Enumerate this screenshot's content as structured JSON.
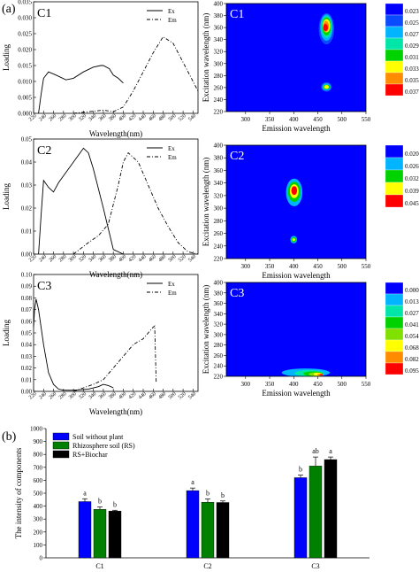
{
  "panel_labels": {
    "a": "(a)",
    "b": "(b)"
  },
  "chart_data": [
    {
      "type": "line",
      "panel": "C1",
      "xlabel": "Wavelength(nm)",
      "ylabel": "Loading",
      "xlim": [
        220,
        550
      ],
      "ylim": [
        0,
        0.035
      ],
      "yticks": [
        "0.000",
        "0.005",
        "0.010",
        "0.015",
        "0.020",
        "0.025",
        "0.030",
        "0.035"
      ],
      "xticks": [
        220,
        240,
        260,
        280,
        300,
        320,
        340,
        360,
        380,
        400,
        420,
        440,
        460,
        480,
        500,
        520,
        540
      ],
      "legend": [
        "Ex",
        "Em"
      ],
      "series": [
        {
          "name": "Ex",
          "style": "solid",
          "x": [
            230,
            235,
            240,
            250,
            265,
            285,
            300,
            320,
            340,
            355,
            360,
            372,
            380,
            390,
            400
          ],
          "y": [
            0.0,
            0.006,
            0.011,
            0.013,
            0.012,
            0.0105,
            0.011,
            0.013,
            0.0145,
            0.015,
            0.015,
            0.014,
            0.012,
            0.011,
            0.0095
          ]
        },
        {
          "name": "Em",
          "style": "dashdot",
          "x": [
            300,
            330,
            360,
            380,
            400,
            420,
            440,
            460,
            480,
            500,
            520,
            540,
            550
          ],
          "y": [
            0.0,
            0.0005,
            0.001,
            0.0005,
            0.002,
            0.007,
            0.013,
            0.019,
            0.024,
            0.022,
            0.016,
            0.01,
            0.007
          ]
        }
      ]
    },
    {
      "type": "line",
      "panel": "C2",
      "xlabel": "Wavelength(nm)",
      "ylabel": "Loading",
      "xlim": [
        220,
        550
      ],
      "ylim": [
        0,
        0.05
      ],
      "yticks": [
        "0.00",
        "0.01",
        "0.02",
        "0.03",
        "0.04",
        "0.05"
      ],
      "xticks": [
        220,
        240,
        260,
        280,
        300,
        320,
        340,
        360,
        380,
        400,
        420,
        440,
        460,
        480,
        500,
        520,
        540
      ],
      "legend": [
        "Ex",
        "Em"
      ],
      "series": [
        {
          "name": "Ex",
          "style": "solid",
          "x": [
            230,
            235,
            240,
            250,
            260,
            270,
            280,
            300,
            310,
            320,
            330,
            340,
            360,
            380,
            400
          ],
          "y": [
            0.0,
            0.017,
            0.032,
            0.029,
            0.027,
            0.031,
            0.034,
            0.04,
            0.043,
            0.046,
            0.044,
            0.037,
            0.02,
            0.002,
            0.0
          ]
        },
        {
          "name": "Em",
          "style": "dashdot",
          "x": [
            300,
            330,
            350,
            370,
            390,
            400,
            410,
            430,
            450,
            470,
            490,
            510,
            530,
            550
          ],
          "y": [
            0.0,
            0.005,
            0.008,
            0.013,
            0.03,
            0.04,
            0.044,
            0.04,
            0.03,
            0.02,
            0.012,
            0.005,
            0.001,
            0.0
          ]
        }
      ]
    },
    {
      "type": "line",
      "panel": "C3",
      "xlabel": "Wavelength(nm)",
      "ylabel": "Loading",
      "xlim": [
        220,
        550
      ],
      "ylim": [
        0,
        0.1
      ],
      "yticks": [
        "0.00",
        "0.01",
        "0.02",
        "0.03",
        "0.04",
        "0.05",
        "0.06",
        "0.07",
        "0.08",
        "0.09",
        "0.10"
      ],
      "xticks": [
        220,
        240,
        260,
        280,
        300,
        320,
        340,
        360,
        380,
        400,
        420,
        440,
        460,
        480,
        500,
        520,
        540
      ],
      "legend": [
        "Ex",
        "Em"
      ],
      "series": [
        {
          "name": "Ex",
          "style": "solid",
          "x": [
            220,
            222,
            225,
            230,
            240,
            250,
            260,
            270,
            280,
            300,
            330,
            350,
            360,
            370,
            380
          ],
          "y": [
            0.055,
            0.07,
            0.079,
            0.07,
            0.04,
            0.016,
            0.006,
            0.002,
            0.001,
            0.001,
            0.002,
            0.004,
            0.006,
            0.005,
            0.003
          ]
        },
        {
          "name": "Em",
          "style": "dashdot",
          "x": [
            300,
            320,
            340,
            360,
            380,
            400,
            420,
            440,
            460,
            463,
            466
          ],
          "y": [
            0.0,
            0.003,
            0.006,
            0.01,
            0.02,
            0.03,
            0.04,
            0.045,
            0.055,
            0.056,
            0.007
          ]
        }
      ]
    },
    {
      "type": "heatmap",
      "panel": "C1",
      "xlabel": "Emission wavelength",
      "ylabel": "Excitation wavelength (nm)",
      "xlim": [
        260,
        550
      ],
      "ylim": [
        220,
        400
      ],
      "xticks": [
        300,
        350,
        400,
        450,
        500,
        550
      ],
      "yticks": [
        220,
        240,
        260,
        280,
        300,
        320,
        340,
        360,
        380,
        400
      ],
      "colorbar": [
        "0.023",
        "0.025",
        "0.027",
        "0.029",
        "0.031",
        "0.033",
        "0.035",
        "0.037"
      ],
      "colors": [
        "#0000ff",
        "#0a4bff",
        "#00b4ff",
        "#00e6a8",
        "#00d200",
        "#ffff00",
        "#ff8c00",
        "#ff0000"
      ]
    },
    {
      "type": "heatmap",
      "panel": "C2",
      "xlabel": "Emission wavelength",
      "ylabel": "Excitation wavelength (nm)",
      "xlim": [
        260,
        550
      ],
      "ylim": [
        220,
        400
      ],
      "xticks": [
        300,
        350,
        400,
        450,
        500,
        550
      ],
      "yticks": [
        220,
        240,
        260,
        280,
        300,
        320,
        340,
        360,
        380,
        400
      ],
      "colorbar": [
        "0.020",
        "0.026",
        "0.032",
        "0.039",
        "0.045"
      ],
      "colors": [
        "#0000ff",
        "#00b4ff",
        "#00d200",
        "#ffff00",
        "#ff0000"
      ]
    },
    {
      "type": "heatmap",
      "panel": "C3",
      "xlabel": "Emission wavelength",
      "ylabel": "Excitation wavelength (nm)",
      "xlim": [
        260,
        550
      ],
      "ylim": [
        220,
        400
      ],
      "xticks": [
        300,
        350,
        400,
        450,
        500,
        550
      ],
      "yticks": [
        220,
        240,
        260,
        280,
        300,
        320,
        340,
        360,
        380,
        400
      ],
      "colorbar": [
        "0.0000",
        "0.0137",
        "0.0273",
        "0.0410",
        "0.0546",
        "0.0683",
        "0.0820",
        "0.0956"
      ],
      "colors": [
        "#0000ff",
        "#00b4ff",
        "#00e6a8",
        "#00d200",
        "#80e000",
        "#ffff00",
        "#ff8c00",
        "#ff0000"
      ]
    },
    {
      "type": "bar",
      "panel": "b",
      "ylabel": "The intensity of components",
      "ylim": [
        0,
        1000
      ],
      "yticks": [
        0,
        100,
        200,
        300,
        400,
        500,
        600,
        700,
        800,
        900,
        1000
      ],
      "categories": [
        "C1",
        "C2",
        "C3"
      ],
      "series": [
        {
          "name": "Soil without plant",
          "color": "#0000ff",
          "values": [
            435,
            520,
            620
          ],
          "errors": [
            22,
            20,
            20
          ],
          "letters": [
            "a",
            "a",
            "b"
          ]
        },
        {
          "name": "Rhizosphere soil (RS)",
          "color": "#008000",
          "values": [
            375,
            430,
            710
          ],
          "errors": [
            18,
            25,
            70
          ],
          "letters": [
            "b",
            "b",
            "ab"
          ]
        },
        {
          "name": "RS+Biochar",
          "color": "#000000",
          "values": [
            362,
            428,
            760
          ],
          "errors": [
            6,
            12,
            20
          ],
          "letters": [
            "b",
            "b",
            "a"
          ]
        }
      ]
    }
  ]
}
